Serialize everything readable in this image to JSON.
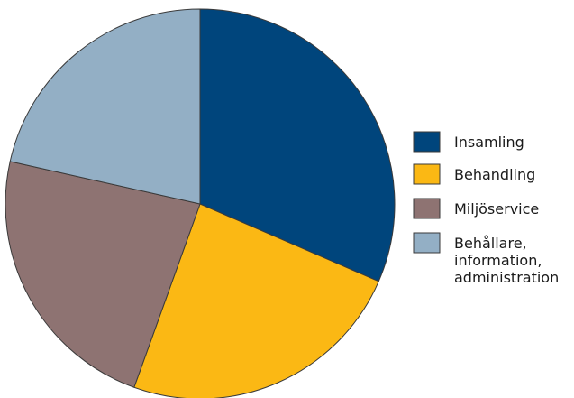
{
  "chart_data": {
    "type": "pie",
    "title": "",
    "slices": [
      {
        "label_lines": [
          "Insamling"
        ],
        "value": 31.5,
        "color": "#00457c"
      },
      {
        "label_lines": [
          "Behandling"
        ],
        "value": 24.0,
        "color": "#fbb814"
      },
      {
        "label_lines": [
          "Miljöservice"
        ],
        "value": 23.0,
        "color": "#8e7372"
      },
      {
        "label_lines": [
          "Behållare,",
          "information,",
          "administration"
        ],
        "value": 21.5,
        "color": "#93afc5"
      }
    ],
    "start_angle_deg": 0,
    "direction": "clockwise",
    "legend_position": "right",
    "slice_border_color": "#3a3a3a"
  }
}
